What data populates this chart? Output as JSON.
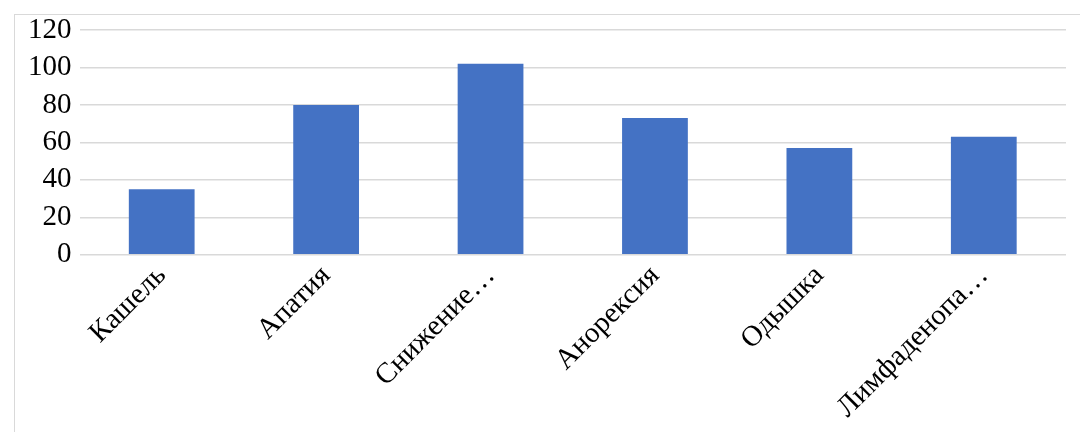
{
  "chart_data": {
    "type": "bar",
    "categories": [
      "Кашель",
      "Апатия",
      "Снижение…",
      "Анорексия",
      "Одышка",
      "Лимфаденопа…"
    ],
    "values": [
      35,
      80,
      102,
      73,
      57,
      63
    ],
    "color": "#4472c4",
    "ylim": [
      0,
      120
    ],
    "yticks": [
      0,
      20,
      40,
      60,
      80,
      100,
      120
    ],
    "grid": "y",
    "legend": false
  }
}
